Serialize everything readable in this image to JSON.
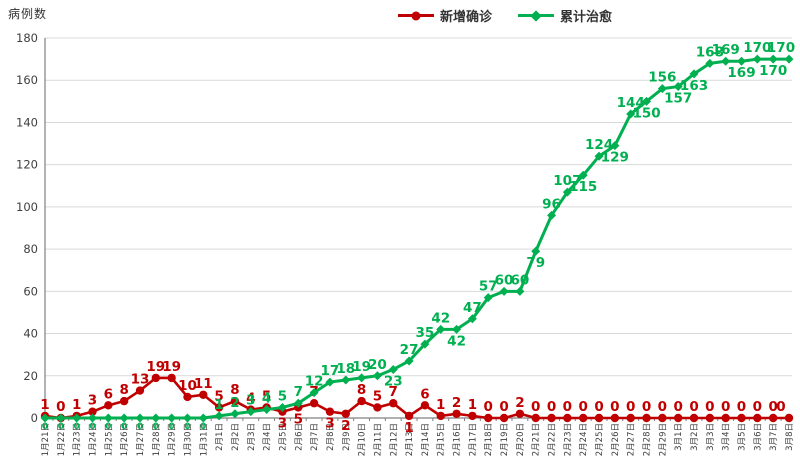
{
  "title": "病例数",
  "legend": [
    {
      "label": "新增确诊",
      "color": "#C00000",
      "marker": "circle"
    },
    {
      "label": "累计治愈",
      "color": "#00B050",
      "marker": "diamond"
    }
  ],
  "colors": {
    "grid": "#D9D9D9",
    "axis": "#808080",
    "tick_text": "#404040"
  },
  "chart_data": {
    "type": "line",
    "title": "病例数",
    "xlabel": "",
    "ylabel": "病例数",
    "ylim": [
      0,
      180
    ],
    "ytick_step": 20,
    "grid": true,
    "legend_position": "top",
    "categories": [
      "1月21日",
      "1月22日",
      "1月23日",
      "1月24日",
      "1月25日",
      "1月26日",
      "1月27日",
      "1月28日",
      "1月29日",
      "1月30日",
      "1月31日",
      "2月1日",
      "2月2日",
      "2月3日",
      "2月4日",
      "2月5日",
      "2月6日",
      "2月7日",
      "2月8日",
      "2月9日",
      "2月10日",
      "2月11日",
      "2月12日",
      "2月13日",
      "2月14日",
      "2月15日",
      "2月16日",
      "2月17日",
      "2月18日",
      "2月19日",
      "2月20日",
      "2月21日",
      "2月22日",
      "2月23日",
      "2月24日",
      "2月25日",
      "2月26日",
      "2月27日",
      "2月28日",
      "2月29日",
      "3月1日",
      "3月2日",
      "3月3日",
      "3月4日",
      "3月5日",
      "3月6日",
      "3月7日",
      "3月8日"
    ],
    "series": [
      {
        "name": "新增确诊",
        "color": "#C00000",
        "marker": "circle",
        "values": [
          1,
          0,
          1,
          3,
          6,
          8,
          13,
          19,
          19,
          10,
          11,
          5,
          8,
          4,
          5,
          3,
          5,
          7,
          3,
          2,
          8,
          5,
          7,
          1,
          6,
          1,
          2,
          1,
          0,
          0,
          2,
          0,
          0,
          0,
          0,
          0,
          0,
          0,
          0,
          0,
          0,
          0,
          0,
          0,
          0,
          0,
          0,
          0
        ],
        "label_below": [
          15,
          16,
          18,
          19,
          23
        ]
      },
      {
        "name": "累计治愈",
        "color": "#00B050",
        "marker": "diamond",
        "values": [
          0,
          0,
          0,
          0,
          0,
          0,
          0,
          0,
          0,
          0,
          0,
          1,
          2,
          3,
          4,
          5,
          7,
          12,
          17,
          18,
          19,
          20,
          23,
          27,
          35,
          42,
          42,
          47,
          57,
          60,
          60,
          79,
          96,
          107,
          115,
          124,
          129,
          144,
          150,
          156,
          157,
          163,
          168,
          169,
          169,
          170,
          170,
          170
        ],
        "label_below": [
          0,
          1,
          2,
          3,
          4,
          5,
          6,
          7,
          8,
          9,
          10,
          22,
          26,
          31,
          34,
          36,
          38,
          40,
          41,
          44,
          46
        ],
        "small_label_max_index": 10
      }
    ]
  }
}
